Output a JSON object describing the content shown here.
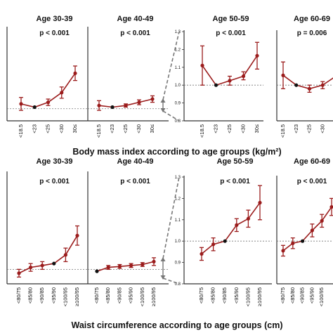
{
  "chart_data": [
    {
      "type": "line",
      "title": "Age 30-39",
      "annotation": "p < 0.001",
      "categories": [
        "<18.5",
        "<23",
        "<25",
        "<30",
        "30≤"
      ],
      "values": [
        1.06,
        1.02,
        1.08,
        1.2,
        1.44
      ],
      "error_low": [
        0.98,
        null,
        1.04,
        1.13,
        1.35
      ],
      "error_high": [
        1.14,
        null,
        1.12,
        1.27,
        1.53
      ],
      "reference_index": 1,
      "ylim": [
        0.85,
        2.0
      ]
    },
    {
      "type": "line",
      "title": "Age 40-49",
      "annotation": "p < 0.001",
      "categories": [
        "<18.5",
        "<23",
        "<25",
        "<30",
        "30≤"
      ],
      "values": [
        1.04,
        1.02,
        1.04,
        1.08,
        1.12
      ],
      "error_low": [
        0.98,
        null,
        1.02,
        1.05,
        1.08
      ],
      "error_high": [
        1.1,
        null,
        1.06,
        1.11,
        1.16
      ],
      "reference_index": 1,
      "ylim": [
        0.85,
        2.0
      ]
    },
    {
      "type": "line",
      "title": "Age 50-59",
      "annotation": "p < 0.001",
      "categories": [
        "<18.5",
        "<23",
        "<25",
        "<30",
        "30≤"
      ],
      "values": [
        1.11,
        1.0,
        1.025,
        1.05,
        1.165
      ],
      "error_low": [
        1.0,
        null,
        1.0,
        1.03,
        1.09
      ],
      "error_high": [
        1.22,
        null,
        1.05,
        1.075,
        1.24
      ],
      "reference_index": 1,
      "yticks": [
        0.8,
        0.9,
        1.0,
        1.1,
        1.2,
        1.3
      ],
      "ytick_labels": [
        "0.8",
        "0.9",
        "1.0",
        "1.1",
        "1.2",
        "1.3"
      ],
      "ylim": [
        0.8,
        1.3
      ]
    },
    {
      "type": "line",
      "title": "Age 60-69",
      "annotation": "p = 0.006",
      "categories": [
        "<18.5",
        "<23",
        "<25",
        "<30",
        "30≤"
      ],
      "values": [
        1.055,
        1.0,
        0.98,
        1.0,
        1.05
      ],
      "error_low": [
        0.98,
        null,
        0.96,
        0.98,
        1.0
      ],
      "error_high": [
        1.13,
        null,
        1.0,
        1.02,
        1.1
      ],
      "reference_index": 1,
      "ylim": [
        0.8,
        1.3
      ]
    },
    {
      "type": "line",
      "title": "Age 30-39",
      "annotation": "p < 0.001",
      "categories": [
        "<80/75",
        "<85/80",
        "<90/85",
        "<95/90",
        "<100/95",
        "≥100/95"
      ],
      "values": [
        0.96,
        1.02,
        1.04,
        1.06,
        1.15,
        1.35
      ],
      "error_low": [
        0.92,
        0.98,
        1.0,
        null,
        1.08,
        1.25
      ],
      "error_high": [
        1.0,
        1.06,
        1.08,
        null,
        1.22,
        1.45
      ],
      "reference_index": 3,
      "ylim": [
        0.85,
        2.0
      ]
    },
    {
      "type": "line",
      "title": "Age 40-49",
      "annotation": "p < 0.001",
      "categories": [
        "<80/75",
        "<85/80",
        "<90/85",
        "<95/90",
        "<100/95",
        "≥100/95"
      ],
      "values": [
        0.98,
        1.02,
        1.03,
        1.04,
        1.05,
        1.08
      ],
      "error_low": [
        null,
        1.0,
        1.01,
        1.02,
        1.03,
        1.04
      ],
      "error_high": [
        null,
        1.04,
        1.05,
        1.06,
        1.07,
        1.12
      ],
      "reference_index": 0,
      "ylim": [
        0.85,
        2.0
      ]
    },
    {
      "type": "line",
      "title": "Age 50-59",
      "annotation": "p < 0.001",
      "categories": [
        "<80/75",
        "<85/80",
        "<90/85",
        "<95/90",
        "<100/95",
        "≥100/95"
      ],
      "values": [
        0.94,
        0.985,
        1.0,
        1.075,
        1.105,
        1.18
      ],
      "error_low": [
        0.91,
        0.955,
        null,
        1.045,
        1.065,
        1.1
      ],
      "error_high": [
        0.97,
        1.015,
        null,
        1.105,
        1.145,
        1.26
      ],
      "reference_index": 2,
      "yticks": [
        0.8,
        0.9,
        1.0,
        1.1,
        1.2,
        1.3
      ],
      "ytick_labels": [
        "0.8",
        "0.9",
        "1.0",
        "1.1",
        "1.2",
        "1.3"
      ],
      "ylim": [
        0.8,
        1.3
      ]
    },
    {
      "type": "line",
      "title": "Age 60-69",
      "annotation": "p < 0.001",
      "categories": [
        "<80/75",
        "<85/80",
        "<90/85",
        "<95/90",
        "<100/95",
        "≥100/95"
      ],
      "values": [
        0.955,
        0.99,
        1.0,
        1.05,
        1.095,
        1.16
      ],
      "error_low": [
        0.93,
        0.965,
        null,
        1.02,
        1.065,
        1.12
      ],
      "error_high": [
        0.98,
        1.015,
        null,
        1.08,
        1.125,
        1.2
      ],
      "reference_index": 2,
      "ylim": [
        0.8,
        1.3
      ]
    }
  ],
  "captions": {
    "top": "Body mass index according to age groups (kg/m²)",
    "bottom": "Waist circumference according to age groups (cm)"
  },
  "colors": {
    "series": "#9b1c1c",
    "reference": "#111111",
    "axis": "#333333",
    "dashed": "#777777"
  }
}
